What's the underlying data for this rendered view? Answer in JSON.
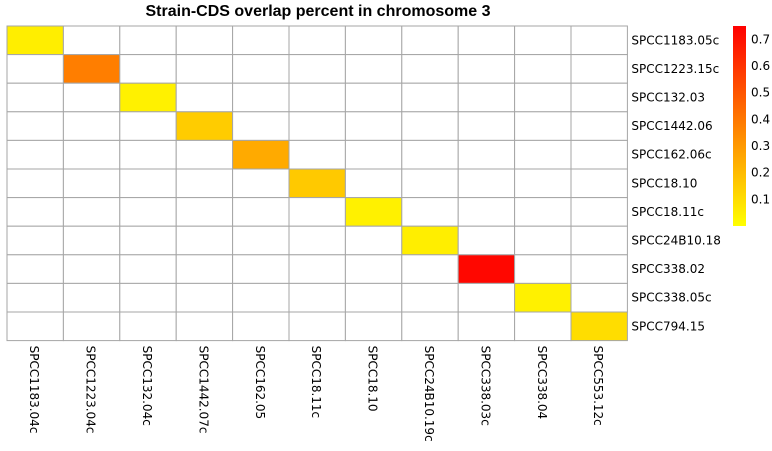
{
  "chart_data": {
    "type": "heatmap",
    "title": "Strain-CDS overlap percent in chromosome 3",
    "xlabel": "",
    "ylabel": "",
    "rows": [
      "SPCC1183.05c",
      "SPCC1223.15c",
      "SPCC132.03",
      "SPCC1442.06",
      "SPCC162.06c",
      "SPCC18.10",
      "SPCC18.11c",
      "SPCC24B10.18",
      "SPCC338.02",
      "SPCC338.05c",
      "SPCC794.15"
    ],
    "columns": [
      "SPCC1183.04c",
      "SPCC1223.04c",
      "SPCC132.04c",
      "SPCC1442.07c",
      "SPCC162.05",
      "SPCC18.11c",
      "SPCC18.10",
      "SPCC24B10.19c",
      "SPCC338.03c",
      "SPCC338.04",
      "SPCC553.12c"
    ],
    "cells": [
      {
        "row": 0,
        "col": 0,
        "value": 0.05
      },
      {
        "row": 1,
        "col": 1,
        "value": 0.38
      },
      {
        "row": 2,
        "col": 2,
        "value": 0.04
      },
      {
        "row": 3,
        "col": 3,
        "value": 0.15
      },
      {
        "row": 4,
        "col": 4,
        "value": 0.25
      },
      {
        "row": 5,
        "col": 5,
        "value": 0.16
      },
      {
        "row": 6,
        "col": 6,
        "value": 0.04
      },
      {
        "row": 7,
        "col": 7,
        "value": 0.05
      },
      {
        "row": 8,
        "col": 8,
        "value": 0.73
      },
      {
        "row": 9,
        "col": 9,
        "value": 0.04
      },
      {
        "row": 10,
        "col": 10,
        "value": 0.1
      }
    ],
    "empty_cell_color": "#ffffff",
    "grid_color": "#a6a6a6",
    "colorscale": {
      "min": 0.0,
      "max": 0.75,
      "low_color": "#ffff00",
      "high_color": "#ff0000",
      "ticks": [
        "0.1",
        "0.2",
        "0.3",
        "0.4",
        "0.5",
        "0.6",
        "0.7"
      ],
      "tick_values": [
        0.1,
        0.2,
        0.3,
        0.4,
        0.5,
        0.6,
        0.7
      ]
    }
  }
}
